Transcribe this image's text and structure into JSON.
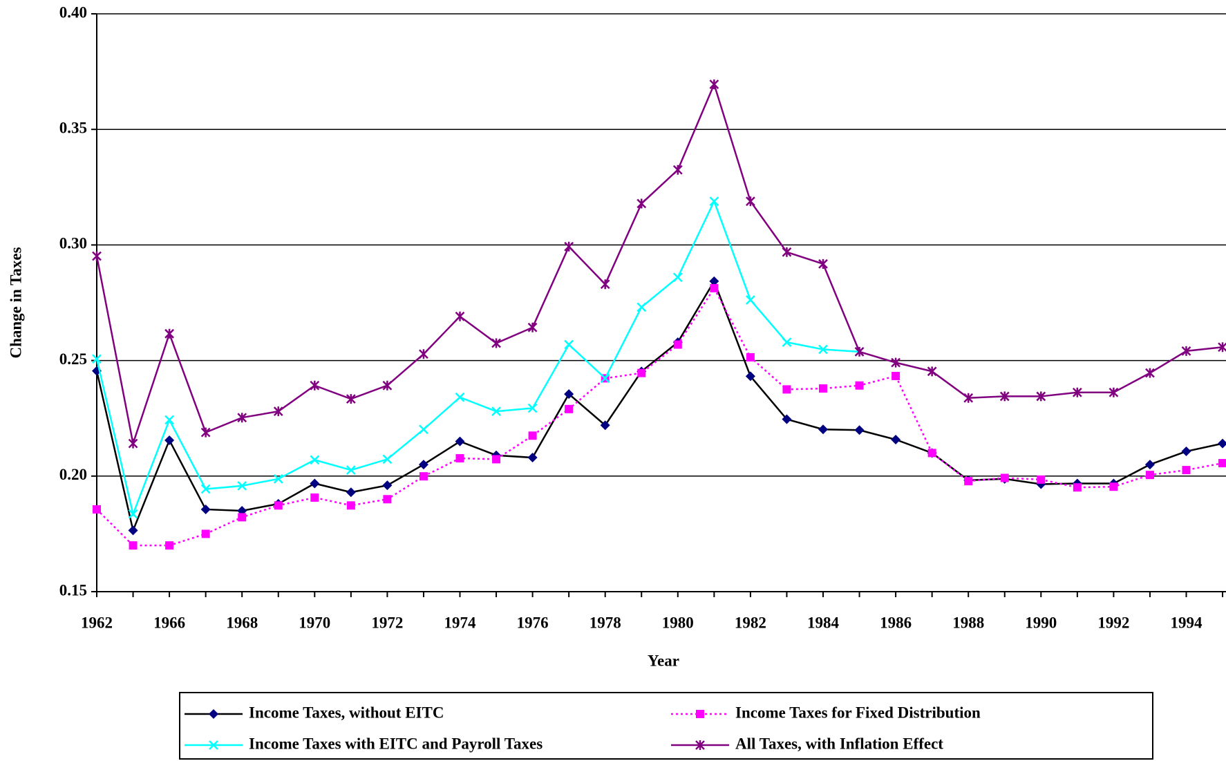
{
  "chart_data": {
    "type": "line",
    "x_label": "Year",
    "y_label": "Change in Taxes",
    "categories": [
      "1962",
      null,
      "1966",
      null,
      "1968",
      null,
      "1970",
      null,
      "1972",
      null,
      "1974",
      null,
      "1976",
      null,
      "1978",
      null,
      "1980",
      null,
      "1982",
      null,
      "1984",
      null,
      "1986",
      null,
      "1988",
      null,
      "1990",
      null,
      "1992",
      null,
      "1994",
      null
    ],
    "ylim": [
      0.15,
      0.4
    ],
    "yticks": [
      0.15,
      {
        "value": 0.2,
        "label": "0.20"
      },
      0.25,
      {
        "value": 0.3,
        "label": "0.30"
      },
      0.35,
      {
        "value": 0.4,
        "label": "0.40"
      }
    ],
    "grid": true,
    "series": [
      {
        "name": "Income Taxes, without EITC",
        "color": "#000080",
        "marker": "diamond",
        "dash": "solid",
        "line_color": "#000000",
        "values": [
          0.2455,
          0.1765,
          0.2155,
          0.1856,
          0.185,
          0.188,
          0.1968,
          0.193,
          0.196,
          0.205,
          0.215,
          0.209,
          0.208,
          0.2355,
          0.222,
          0.2453,
          0.2579,
          0.2843,
          0.2432,
          0.2246,
          0.2202,
          0.2199,
          0.2158,
          0.21,
          0.1982,
          0.1988,
          0.1965,
          0.1968,
          0.1968,
          0.205,
          0.2107,
          0.2141
        ]
      },
      {
        "name": "Income Taxes for Fixed Distribution",
        "color": "#ff00ff",
        "marker": "square",
        "dash": "dotted",
        "line_color": "#ff00ff",
        "values": [
          0.1856,
          0.17,
          0.17,
          0.175,
          0.1822,
          0.1873,
          0.1907,
          0.1873,
          0.19,
          0.1999,
          0.2077,
          0.2073,
          0.2175,
          0.229,
          0.2423,
          0.2446,
          0.2569,
          0.2813,
          0.2514,
          0.2375,
          0.2379,
          0.2392,
          0.2433,
          0.21,
          0.1978,
          0.1992,
          0.1985,
          0.1951,
          0.1954,
          0.2005,
          0.2026,
          0.2056
        ]
      },
      {
        "name": "Income Taxes with EITC and Payroll Taxes",
        "color": "#00ffff",
        "marker": "x",
        "dash": "solid",
        "line_color": "#00ffff",
        "values": [
          0.2507,
          0.1836,
          0.2243,
          0.1944,
          0.1958,
          0.1988,
          0.207,
          0.2026,
          0.2073,
          0.2202,
          0.2341,
          0.228,
          0.2294,
          0.2569,
          0.2423,
          0.2731,
          0.286,
          0.3189,
          0.2762,
          0.2579,
          0.2548,
          0.2538,
          null,
          null,
          null,
          null,
          null,
          null,
          null,
          null,
          null,
          null
        ]
      },
      {
        "name": "All Taxes, with Inflation Effect",
        "color": "#800080",
        "marker": "star",
        "dash": "solid",
        "line_color": "#800080",
        "values": [
          0.2952,
          0.2141,
          0.2616,
          0.2189,
          0.2253,
          0.228,
          0.2392,
          0.2334,
          0.2392,
          0.2528,
          0.2691,
          0.2575,
          0.2643,
          0.2993,
          0.283,
          0.3179,
          0.3325,
          0.3695,
          0.3189,
          0.2969,
          0.2918,
          0.2538,
          0.2491,
          0.2453,
          0.2338,
          0.2345,
          0.2345,
          0.2362,
          0.2362,
          0.2446,
          0.2541,
          0.2558
        ]
      }
    ]
  }
}
